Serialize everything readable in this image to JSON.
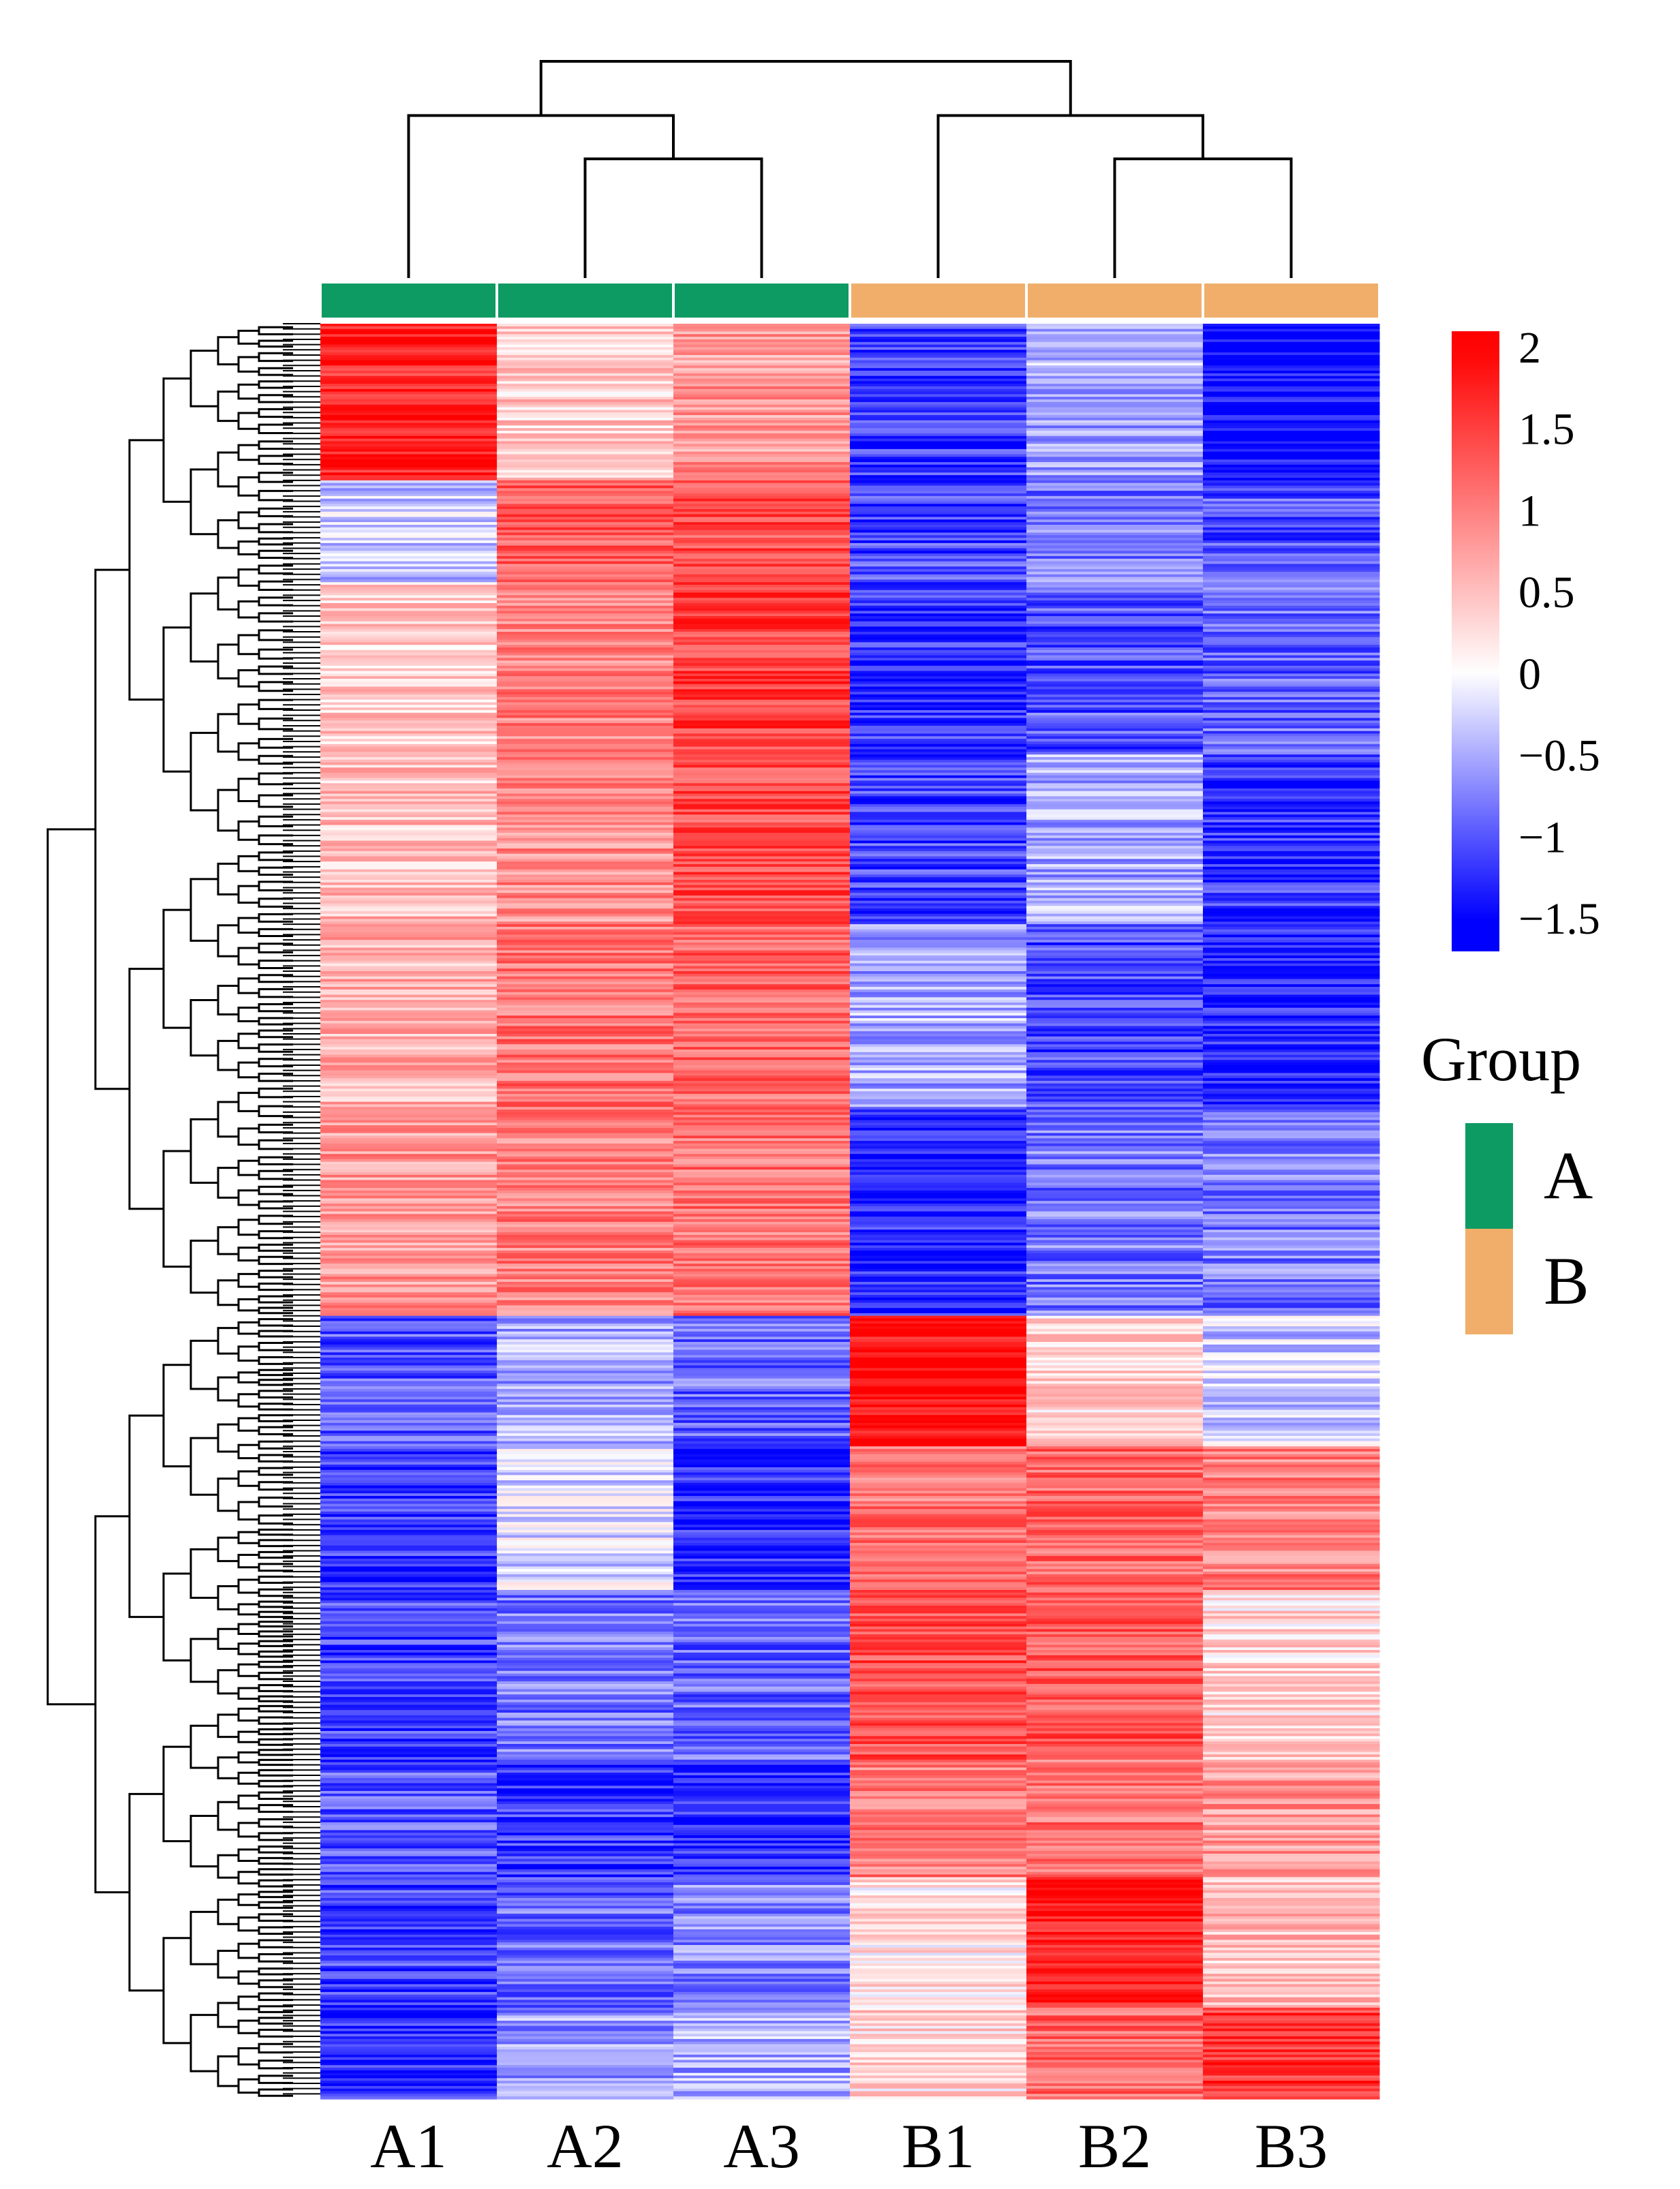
{
  "chart_data": {
    "type": "heatmap",
    "title": "",
    "xlabel": "",
    "ylabel": "",
    "columns": [
      "A1",
      "A2",
      "A3",
      "B1",
      "B2",
      "B3"
    ],
    "column_groups": [
      "A",
      "A",
      "A",
      "B",
      "B",
      "B"
    ],
    "colorbar": {
      "min": -1.7,
      "max": 2.1,
      "ticks": [
        {
          "value": 2,
          "label": "2"
        },
        {
          "value": 1.5,
          "label": "1.5"
        },
        {
          "value": 1,
          "label": "1"
        },
        {
          "value": 0.5,
          "label": "0.5"
        },
        {
          "value": 0,
          "label": "0"
        },
        {
          "value": -0.5,
          "label": "−0.5"
        },
        {
          "value": -1,
          "label": "−1"
        },
        {
          "value": -1.5,
          "label": "−1.5"
        }
      ],
      "colors": {
        "low": "#0000ff",
        "mid": "#ffffff",
        "high": "#ff0000"
      }
    },
    "legend": {
      "title": "Group",
      "placement": "right",
      "entries": [
        {
          "label": "A",
          "color": "#0e9a63"
        },
        {
          "label": "B",
          "color": "#f0ae6a"
        }
      ]
    },
    "column_dendrogram": {
      "merges": [
        {
          "left": "A2",
          "right": "A3",
          "height": 0.55
        },
        {
          "left": "A1",
          "right": "A2+A3",
          "height": 0.75
        },
        {
          "left": "B2",
          "right": "B3",
          "height": 0.55
        },
        {
          "left": "B1",
          "right": "B2+B3",
          "height": 0.75
        },
        {
          "left": "A",
          "right": "B",
          "height": 1.0
        }
      ]
    },
    "row_blocks": [
      {
        "rows": 60,
        "values": [
          1.7,
          0.4,
          0.8,
          -1.2,
          -0.5,
          -1.5
        ]
      },
      {
        "rows": 40,
        "values": [
          -0.3,
          1.3,
          1.4,
          -1.1,
          -0.8,
          -1.0
        ]
      },
      {
        "rows": 65,
        "values": [
          0.4,
          1.0,
          1.5,
          -1.2,
          -1.0,
          -0.9
        ]
      },
      {
        "rows": 65,
        "values": [
          0.5,
          0.9,
          1.4,
          -1.1,
          -0.5,
          -1.2
        ]
      },
      {
        "rows": 70,
        "values": [
          0.6,
          1.1,
          1.2,
          -0.5,
          -1.1,
          -1.3
        ]
      },
      {
        "rows": 80,
        "values": [
          0.8,
          1.0,
          1.1,
          -1.3,
          -0.8,
          -0.8
        ]
      },
      {
        "rows": 50,
        "values": [
          -1.0,
          -0.5,
          -0.9,
          1.9,
          0.3,
          -0.3
        ]
      },
      {
        "rows": 55,
        "values": [
          -1.2,
          -0.2,
          -1.3,
          1.1,
          1.2,
          1.0
        ]
      },
      {
        "rows": 65,
        "values": [
          -1.1,
          -0.8,
          -0.9,
          1.4,
          1.3,
          0.3
        ]
      },
      {
        "rows": 45,
        "values": [
          -1.0,
          -1.2,
          -1.3,
          1.0,
          1.1,
          0.8
        ]
      },
      {
        "rows": 50,
        "values": [
          -1.1,
          -0.9,
          -0.7,
          0.2,
          1.8,
          0.5
        ]
      },
      {
        "rows": 35,
        "values": [
          -1.3,
          -0.6,
          -0.5,
          0.3,
          1.2,
          1.6
        ]
      }
    ]
  }
}
